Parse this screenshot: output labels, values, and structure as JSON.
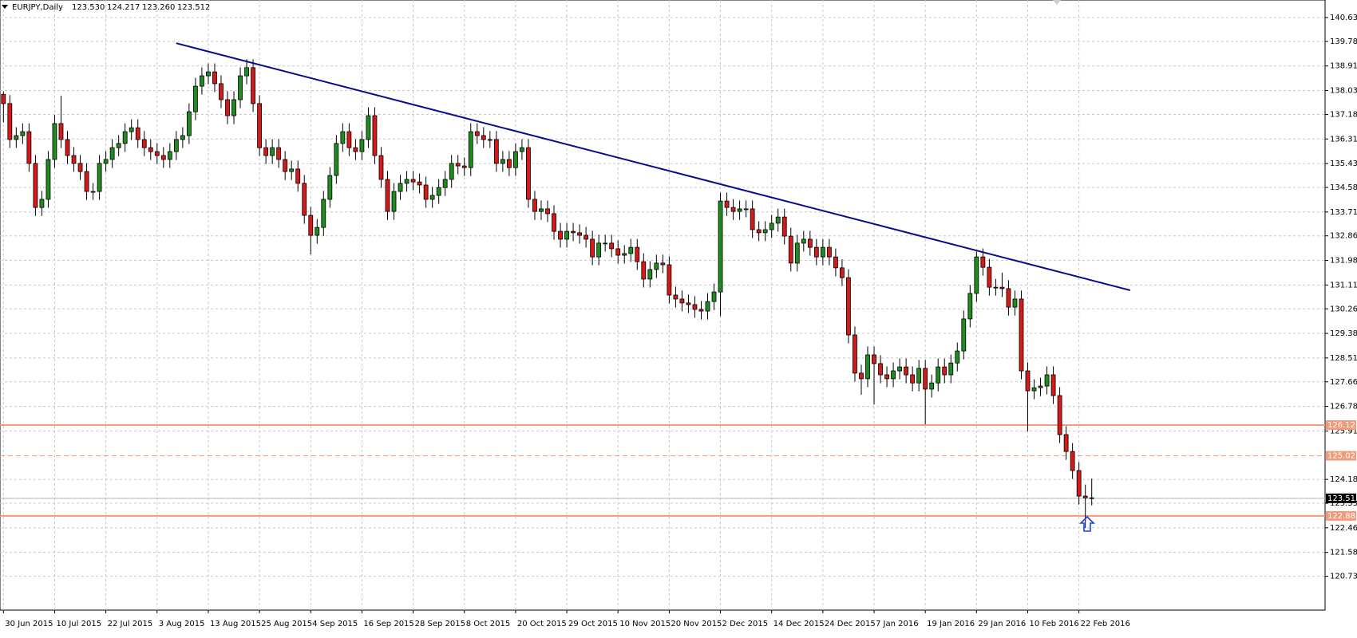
{
  "chart_data": {
    "type": "candlestick",
    "title": "EURJPY,Daily",
    "last_quote_labels": [
      "123.530",
      "124.217",
      "123.260",
      "123.512"
    ],
    "date_labels": [
      "30 Jun 2015",
      "10 Jul 2015",
      "22 Jul 2015",
      "3 Aug 2015",
      "13 Aug 2015",
      "25 Aug 2015",
      "4 Sep 2015",
      "16 Sep 2015",
      "28 Sep 2015",
      "8 Oct 2015",
      "20 Oct 2015",
      "29 Oct 2015",
      "10 Nov 2015",
      "20 Nov 2015",
      "2 Dec 2015",
      "14 Dec 2015",
      "24 Dec 2015",
      "7 Jan 2016",
      "19 Jan 2016",
      "29 Jan 2016",
      "10 Feb 2016",
      "22 Feb 2016"
    ],
    "open": [
      137.9,
      137.57,
      136.29,
      136.43,
      136.57,
      135.44,
      133.87,
      134.16,
      135.58,
      136.86,
      136.29,
      135.72,
      135.44,
      135.15,
      134.44,
      134.44,
      135.44,
      135.58,
      136.0,
      136.15,
      136.57,
      136.71,
      136.29,
      136.0,
      135.86,
      135.72,
      135.58,
      135.86,
      136.29,
      136.43,
      137.28,
      138.19,
      138.56,
      138.7,
      138.28,
      137.71,
      137.14,
      137.71,
      138.56,
      138.85,
      137.57,
      136.0,
      135.72,
      136.0,
      135.58,
      135.15,
      135.24,
      134.73,
      133.59,
      132.88,
      133.16,
      134.16,
      135.01,
      136.15,
      136.57,
      136.0,
      135.86,
      136.29,
      137.14,
      135.72,
      134.87,
      133.73,
      134.44,
      134.73,
      134.87,
      134.78,
      134.67,
      134.16,
      134.3,
      134.58,
      134.87,
      135.44,
      135.35,
      135.29,
      136.57,
      136.43,
      136.29,
      136.29,
      135.44,
      135.58,
      135.29,
      135.86,
      136.0,
      134.16,
      133.73,
      133.82,
      133.65,
      133.02,
      132.74,
      133.02,
      132.97,
      132.88,
      132.74,
      132.11,
      132.6,
      132.6,
      132.4,
      132.17,
      132.23,
      132.45,
      131.94,
      131.32,
      131.66,
      131.89,
      131.83,
      130.75,
      130.61,
      130.47,
      130.41,
      130.24,
      130.18,
      130.52,
      130.86,
      134.1,
      133.87,
      133.73,
      133.82,
      133.82,
      133.08,
      132.97,
      133.08,
      133.31,
      133.53,
      132.85,
      131.89,
      132.6,
      132.74,
      132.45,
      132.11,
      132.45,
      132.11,
      131.72,
      131.37,
      129.33,
      127.97,
      127.77,
      128.62,
      128.31,
      127.91,
      127.77,
      128.05,
      128.19,
      127.91,
      127.62,
      128.14,
      127.4,
      127.62,
      128.19,
      127.91,
      128.33,
      128.76,
      129.9,
      130.81,
      132.11,
      131.74,
      131.03,
      131.03,
      130.98,
      130.32,
      130.61,
      128.05,
      127.34,
      127.45,
      127.51,
      127.91,
      127.17,
      125.78,
      125.18,
      124.5,
      123.59,
      123.53
    ],
    "high": [
      138.0,
      137.87,
      136.73,
      136.87,
      136.87,
      135.74,
      134.46,
      135.88,
      137.16,
      137.85,
      136.59,
      136.02,
      135.74,
      135.45,
      134.74,
      135.74,
      135.88,
      136.3,
      136.45,
      136.87,
      137.01,
      137.01,
      136.59,
      136.3,
      136.16,
      136.02,
      136.16,
      136.59,
      136.73,
      137.58,
      138.49,
      138.86,
      139.0,
      139.0,
      138.58,
      138.01,
      138.01,
      138.86,
      139.15,
      139.15,
      137.87,
      136.3,
      136.3,
      136.3,
      135.88,
      135.54,
      135.54,
      135.03,
      133.89,
      133.46,
      134.46,
      135.31,
      136.45,
      136.87,
      136.87,
      136.3,
      136.59,
      137.44,
      137.44,
      136.02,
      135.17,
      134.74,
      135.03,
      135.17,
      135.17,
      135.08,
      134.97,
      134.6,
      134.88,
      135.17,
      135.74,
      135.74,
      135.65,
      136.87,
      136.87,
      136.73,
      136.59,
      136.59,
      135.88,
      135.88,
      136.16,
      136.3,
      136.3,
      134.46,
      134.12,
      134.12,
      133.95,
      133.32,
      133.32,
      133.32,
      133.27,
      133.18,
      133.04,
      132.9,
      132.9,
      132.9,
      132.7,
      132.53,
      132.75,
      132.75,
      132.24,
      131.96,
      132.19,
      132.19,
      132.13,
      131.05,
      130.91,
      130.77,
      130.71,
      130.54,
      130.82,
      131.16,
      134.4,
      134.4,
      134.17,
      134.12,
      134.12,
      134.12,
      133.38,
      133.38,
      133.61,
      133.83,
      133.83,
      133.15,
      132.9,
      133.04,
      133.04,
      132.75,
      132.75,
      132.75,
      132.41,
      132.02,
      131.67,
      129.63,
      128.27,
      128.92,
      128.92,
      128.61,
      128.21,
      128.35,
      128.49,
      128.49,
      128.21,
      128.44,
      128.44,
      127.92,
      128.49,
      128.49,
      128.63,
      129.06,
      130.2,
      131.11,
      132.3,
      132.41,
      132.04,
      131.33,
      131.55,
      131.28,
      130.91,
      130.91,
      128.35,
      127.75,
      127.81,
      128.21,
      128.21,
      127.47,
      126.08,
      125.48,
      124.8,
      124.0,
      124.217
    ],
    "low": [
      136.9,
      135.99,
      135.99,
      136.13,
      135.14,
      133.57,
      133.57,
      133.86,
      135.28,
      135.99,
      135.42,
      135.14,
      134.85,
      134.14,
      134.14,
      134.14,
      135.14,
      135.28,
      135.7,
      135.85,
      136.27,
      135.99,
      135.7,
      135.56,
      135.42,
      135.28,
      135.28,
      135.56,
      135.99,
      136.13,
      136.98,
      137.89,
      138.26,
      137.98,
      137.41,
      136.84,
      136.84,
      137.41,
      138.26,
      137.27,
      135.7,
      135.42,
      135.42,
      135.28,
      134.85,
      134.85,
      134.43,
      133.29,
      132.2,
      132.58,
      132.86,
      133.86,
      134.71,
      135.85,
      135.7,
      135.56,
      135.56,
      135.99,
      135.42,
      134.57,
      133.43,
      133.43,
      134.14,
      134.43,
      134.48,
      134.37,
      133.86,
      133.86,
      134.0,
      134.28,
      134.57,
      135.05,
      134.99,
      134.99,
      136.13,
      135.99,
      135.99,
      135.14,
      135.14,
      134.99,
      134.99,
      135.56,
      133.86,
      133.43,
      133.43,
      133.35,
      132.72,
      132.44,
      132.44,
      132.67,
      132.58,
      132.44,
      131.81,
      131.81,
      132.3,
      132.1,
      131.87,
      131.87,
      131.93,
      131.64,
      131.02,
      131.02,
      131.36,
      131.53,
      130.45,
      130.31,
      130.17,
      130.11,
      129.94,
      129.88,
      129.88,
      130.22,
      130.0,
      133.57,
      133.43,
      133.43,
      133.52,
      132.78,
      132.67,
      132.67,
      132.78,
      133.01,
      132.55,
      131.59,
      131.59,
      132.3,
      132.15,
      131.81,
      131.81,
      131.81,
      131.42,
      131.07,
      129.03,
      127.67,
      127.2,
      127.47,
      126.85,
      127.61,
      127.47,
      127.47,
      127.75,
      127.61,
      127.32,
      127.32,
      126.15,
      127.1,
      127.32,
      127.61,
      127.61,
      128.03,
      128.46,
      129.6,
      130.51,
      131.44,
      130.73,
      130.73,
      130.68,
      130.02,
      130.02,
      127.75,
      125.9,
      127.04,
      127.15,
      127.21,
      126.87,
      125.48,
      124.88,
      124.2,
      123.29,
      122.45,
      123.26
    ],
    "close": [
      137.57,
      136.29,
      136.43,
      136.57,
      135.44,
      133.87,
      134.16,
      135.58,
      136.86,
      136.29,
      135.72,
      135.44,
      135.15,
      134.44,
      134.44,
      135.44,
      135.58,
      136.0,
      136.15,
      136.57,
      136.71,
      136.29,
      136.0,
      135.86,
      135.72,
      135.58,
      135.86,
      136.29,
      136.43,
      137.28,
      138.19,
      138.56,
      138.7,
      138.28,
      137.71,
      137.14,
      137.71,
      138.56,
      138.85,
      137.57,
      136.0,
      135.72,
      136.0,
      135.58,
      135.15,
      135.24,
      134.73,
      133.59,
      132.88,
      133.16,
      134.16,
      135.01,
      136.15,
      136.57,
      136.0,
      135.86,
      136.29,
      137.14,
      135.72,
      134.87,
      133.73,
      134.44,
      134.73,
      134.87,
      134.78,
      134.67,
      134.16,
      134.3,
      134.58,
      134.87,
      135.44,
      135.35,
      135.29,
      136.57,
      136.43,
      136.29,
      136.29,
      135.44,
      135.58,
      135.29,
      135.86,
      136.0,
      134.16,
      133.73,
      133.82,
      133.65,
      133.02,
      132.74,
      133.02,
      132.97,
      132.88,
      132.74,
      132.11,
      132.6,
      132.6,
      132.4,
      132.17,
      132.23,
      132.45,
      131.94,
      131.32,
      131.66,
      131.89,
      131.83,
      130.75,
      130.61,
      130.47,
      130.41,
      130.24,
      130.18,
      130.52,
      130.86,
      134.1,
      133.87,
      133.73,
      133.82,
      133.82,
      133.08,
      132.97,
      133.08,
      133.31,
      133.53,
      132.85,
      131.89,
      132.6,
      132.74,
      132.45,
      132.11,
      132.45,
      132.11,
      131.72,
      131.37,
      129.33,
      127.97,
      127.77,
      128.62,
      128.31,
      127.91,
      127.77,
      128.05,
      128.19,
      127.91,
      127.62,
      128.14,
      127.4,
      127.62,
      128.19,
      127.91,
      128.33,
      128.76,
      129.9,
      130.81,
      132.11,
      131.74,
      131.03,
      131.03,
      130.98,
      130.32,
      130.61,
      128.05,
      127.34,
      127.45,
      127.51,
      127.91,
      127.17,
      125.78,
      125.18,
      124.5,
      123.59,
      123.53,
      123.512
    ],
    "up_color": "#1e8c1e",
    "down_color": "#d61a1a",
    "ylim": [
      119.53,
      141.26
    ],
    "yticks": [
      140.635,
      139.785,
      {
        "value": 138.91,
        "label": "138.910"
      },
      138.035,
      137.185,
      {
        "value": 136.31,
        "label": "136.310"
      },
      135.435,
      134.585,
      {
        "value": 133.71,
        "label": "133.710"
      },
      {
        "value": 132.86,
        "label": "132.860"
      },
      131.985,
      {
        "value": 131.11,
        "label": "131.110"
      },
      {
        "value": 130.26,
        "label": "130.260"
      },
      129.385,
      {
        "value": 128.51,
        "label": "128.510"
      },
      {
        "value": 127.66,
        "label": "127.660"
      },
      126.785,
      {
        "value": 125.91,
        "label": "125.910"
      },
      124.185,
      123.335,
      {
        "value": 122.46,
        "label": "122.460"
      },
      121.585,
      120.735
    ],
    "grid": true,
    "levels": [
      {
        "value": 126.121,
        "style": "solid"
      },
      {
        "value": 125.025,
        "style": "dashed"
      },
      {
        "value": 122.885,
        "style": "solid"
      }
    ],
    "level_color": "#f29a7a",
    "current_price": 123.512,
    "trendline": {
      "x": [
        27,
        176
      ],
      "y": [
        139.72,
        130.92
      ],
      "color": "#0a0a8c"
    }
  }
}
